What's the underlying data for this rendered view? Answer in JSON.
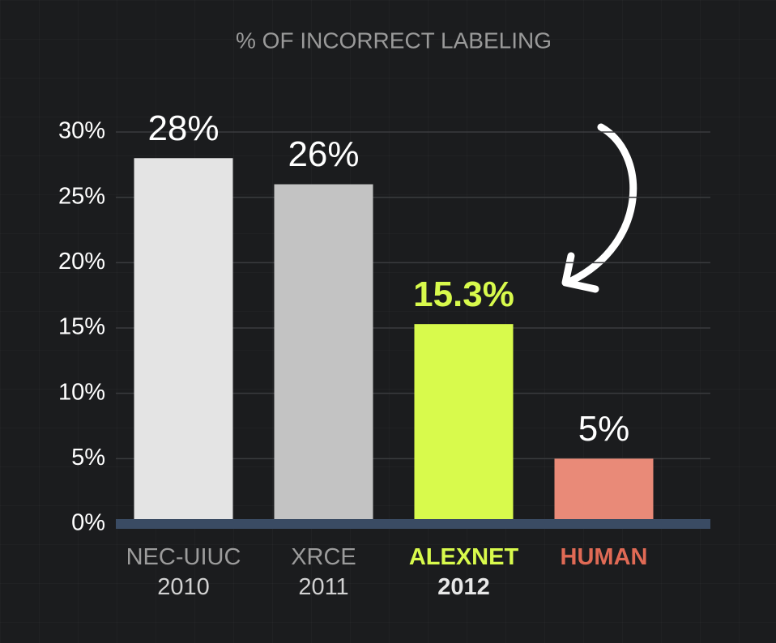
{
  "chart_data": {
    "type": "bar",
    "title": "% OF INCORRECT LABELING",
    "categories": [
      "NEC-UIUC\n2010",
      "XRCE\n2011",
      "ALEXNET\n2012",
      "HUMAN"
    ],
    "values": [
      28,
      26,
      15.3,
      5
    ],
    "value_labels": [
      "28%",
      "26%",
      "15.3%",
      "5%"
    ],
    "colors": [
      "#e4e4e4",
      "#c3c3c3",
      "#d8fa4c",
      "#e98a78"
    ],
    "label_colors": [
      "#9c9c9c",
      "#9c9c9c",
      "#d8fa4c",
      "#e06a55"
    ],
    "ylim": [
      0,
      30
    ],
    "yticks": [
      {
        "value": 0,
        "label": "0%"
      },
      {
        "value": 5,
        "label": "5%"
      },
      {
        "value": 10,
        "label": "10%"
      },
      {
        "value": 15,
        "label": "15%"
      },
      {
        "value": 20,
        "label": "20%"
      },
      {
        "value": 25,
        "label": "25%"
      },
      {
        "value": 30,
        "label": "30%"
      }
    ],
    "grid": true
  }
}
